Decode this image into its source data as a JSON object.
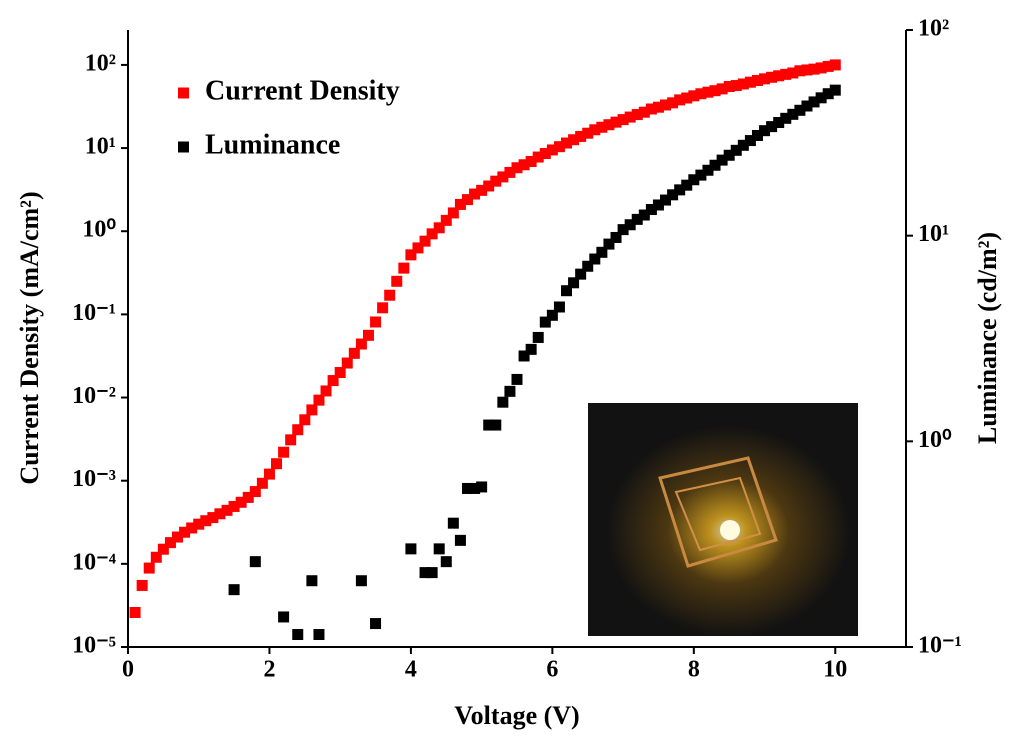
{
  "chart_data": {
    "type": "scatter",
    "x_label": "Voltage (V)",
    "y_label": "Current Density (mA/cm²)",
    "y2_label": "Luminance (cd/m²)",
    "xlim": [
      0,
      11
    ],
    "xticks": [
      0,
      2,
      4,
      6,
      8,
      10
    ],
    "ylim": [
      1e-05,
      263
    ],
    "y_scale": "log",
    "yticks": [
      {
        "value": 1e-05,
        "label": "10⁻⁵"
      },
      {
        "value": 0.0001,
        "label": "10⁻⁴"
      },
      {
        "value": 0.001,
        "label": "10⁻³"
      },
      {
        "value": 0.01,
        "label": "10⁻²"
      },
      {
        "value": 0.1,
        "label": "10⁻¹"
      },
      {
        "value": 1,
        "label": "10⁰"
      },
      {
        "value": 10,
        "label": "10¹"
      },
      {
        "value": 100,
        "label": "10²"
      }
    ],
    "y2lim": [
      0.1,
      100
    ],
    "y2_scale": "log",
    "y2ticks": [
      {
        "value": 0.1,
        "label": "10⁻¹"
      },
      {
        "value": 1,
        "label": "10⁰"
      },
      {
        "value": 10,
        "label": "10¹"
      },
      {
        "value": 100,
        "label": "10²"
      }
    ],
    "legend": "upper left",
    "series": [
      {
        "name": "Current Density",
        "color": "#ff0000",
        "axis": "y",
        "x": [
          0.1,
          0.2,
          0.3,
          0.4,
          0.5,
          0.6,
          0.7,
          0.8,
          0.9,
          1.0,
          1.1,
          1.2,
          1.3,
          1.4,
          1.5,
          1.6,
          1.7,
          1.8,
          1.9,
          2.0,
          2.1,
          2.2,
          2.3,
          2.4,
          2.5,
          2.6,
          2.7,
          2.8,
          2.9,
          3.0,
          3.1,
          3.2,
          3.3,
          3.4,
          3.5,
          3.6,
          3.7,
          3.8,
          3.9,
          4.0,
          4.1,
          4.2,
          4.3,
          4.4,
          4.5,
          4.6,
          4.7,
          4.8,
          4.9,
          5.0,
          5.1,
          5.2,
          5.3,
          5.4,
          5.5,
          5.6,
          5.7,
          5.8,
          5.9,
          6.0,
          6.1,
          6.2,
          6.3,
          6.4,
          6.5,
          6.6,
          6.7,
          6.8,
          6.9,
          7.0,
          7.1,
          7.2,
          7.3,
          7.4,
          7.5,
          7.6,
          7.7,
          7.8,
          7.9,
          8.0,
          8.1,
          8.2,
          8.3,
          8.4,
          8.5,
          8.6,
          8.7,
          8.8,
          8.9,
          9.0,
          9.1,
          9.2,
          9.3,
          9.4,
          9.5,
          9.6,
          9.7,
          9.8,
          9.9,
          10.0
        ],
        "values": [
          2.6e-05,
          5.5e-05,
          8.9e-05,
          0.00012,
          0.00015,
          0.00018,
          0.00021,
          0.00024,
          0.00027,
          0.0003,
          0.00033,
          0.00036,
          0.0004,
          0.00044,
          0.00049,
          0.00055,
          0.00063,
          0.00074,
          0.00093,
          0.0012,
          0.0016,
          0.0022,
          0.0031,
          0.0041,
          0.0054,
          0.0071,
          0.0093,
          0.012,
          0.016,
          0.02,
          0.026,
          0.034,
          0.044,
          0.056,
          0.081,
          0.12,
          0.17,
          0.25,
          0.36,
          0.52,
          0.63,
          0.76,
          0.93,
          1.1,
          1.35,
          1.66,
          2.1,
          2.4,
          2.8,
          3.1,
          3.5,
          4.0,
          4.5,
          5.1,
          5.8,
          6.3,
          6.9,
          7.8,
          8.6,
          9.5,
          10.4,
          11.5,
          12.6,
          13.8,
          15.1,
          16.6,
          17.8,
          19.1,
          20.5,
          22,
          23.6,
          25.3,
          27,
          29.5,
          31,
          33,
          35,
          38,
          40,
          42.5,
          45,
          47,
          49,
          51.5,
          55,
          56.5,
          59,
          62,
          65,
          68,
          71,
          74,
          77,
          80,
          85,
          87,
          89,
          92,
          96,
          100
        ]
      },
      {
        "name": "Luminance",
        "color": "#000000",
        "axis": "y2",
        "x": [
          1.5,
          1.8,
          2.2,
          2.4,
          2.6,
          2.7,
          3.3,
          3.5,
          4.0,
          4.2,
          4.3,
          4.4,
          4.5,
          4.6,
          4.7,
          4.8,
          4.9,
          5.0,
          5.1,
          5.2,
          5.3,
          5.4,
          5.5,
          5.6,
          5.7,
          5.8,
          5.9,
          6.0,
          6.1,
          6.2,
          6.3,
          6.4,
          6.5,
          6.6,
          6.7,
          6.8,
          6.9,
          7.0,
          7.1,
          7.2,
          7.3,
          7.4,
          7.5,
          7.6,
          7.7,
          7.8,
          7.9,
          8.0,
          8.1,
          8.2,
          8.3,
          8.4,
          8.5,
          8.6,
          8.7,
          8.8,
          8.9,
          9.0,
          9.1,
          9.2,
          9.3,
          9.4,
          9.5,
          9.6,
          9.7,
          9.8,
          9.9,
          10.0
        ],
        "values": [
          0.19,
          0.26,
          0.14,
          0.115,
          0.21,
          0.115,
          0.21,
          0.13,
          0.3,
          0.23,
          0.23,
          0.3,
          0.26,
          0.4,
          0.33,
          0.59,
          0.59,
          0.6,
          1.2,
          1.2,
          1.55,
          1.75,
          2.0,
          2.6,
          2.8,
          3.2,
          3.8,
          4.1,
          4.5,
          5.4,
          5.9,
          6.5,
          7.1,
          7.7,
          8.3,
          9.1,
          9.8,
          10.7,
          11.3,
          12.0,
          12.6,
          13.4,
          14.1,
          14.9,
          15.8,
          16.7,
          17.6,
          18.7,
          19.7,
          20.8,
          22,
          23.3,
          24.6,
          26,
          27.5,
          29,
          30.7,
          32.4,
          33.9,
          35.5,
          37.2,
          38.9,
          40.7,
          42.7,
          44.7,
          46.8,
          49,
          51
        ]
      }
    ]
  }
}
